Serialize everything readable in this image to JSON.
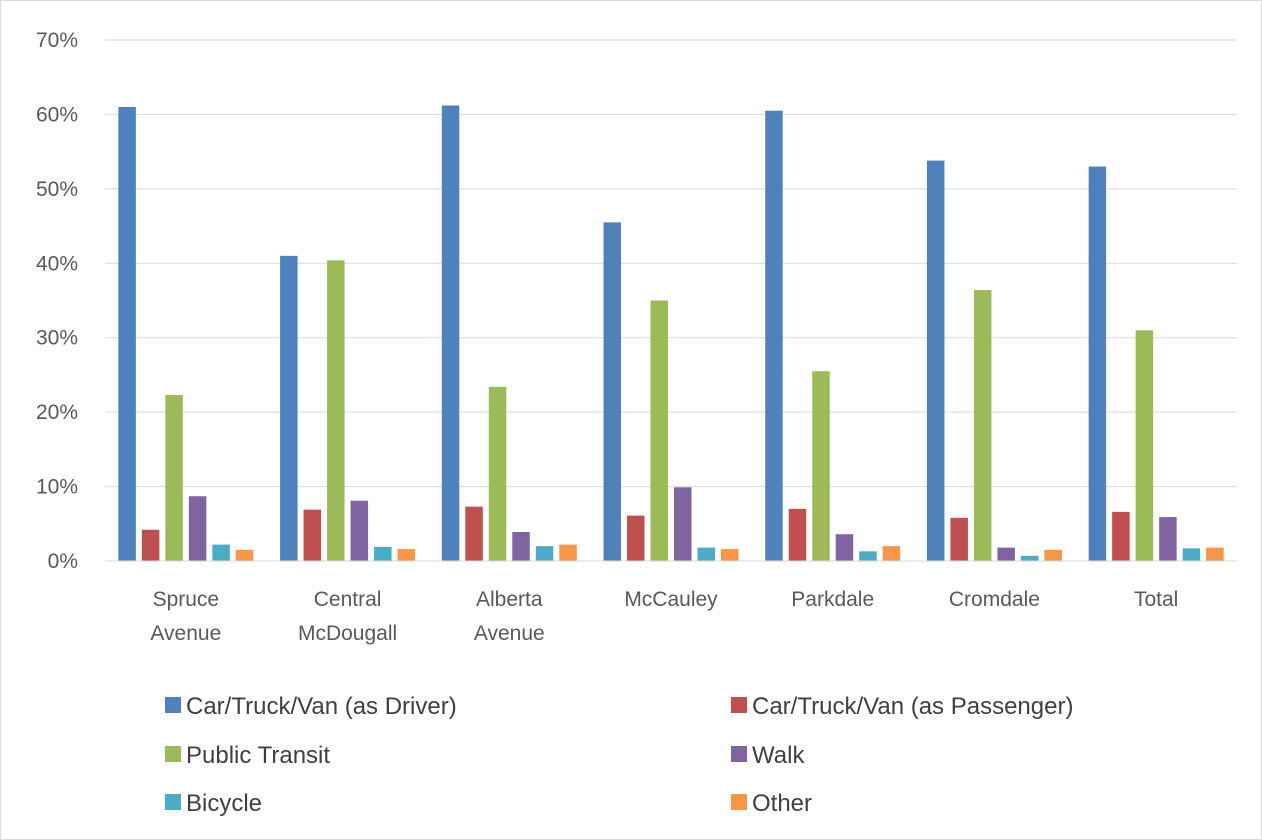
{
  "chart_data": {
    "type": "bar",
    "title": "",
    "xlabel": "",
    "ylabel": "",
    "ylim": [
      0,
      70
    ],
    "y_tick_format": "percent",
    "y_ticks": [
      "0%",
      "10%",
      "20%",
      "30%",
      "40%",
      "50%",
      "60%",
      "70%"
    ],
    "grid": true,
    "legend_position": "bottom",
    "categories": [
      [
        "Spruce",
        "Avenue"
      ],
      [
        "Central",
        "McDougall"
      ],
      [
        "Alberta",
        "Avenue"
      ],
      [
        "McCauley"
      ],
      [
        "Parkdale"
      ],
      [
        "Cromdale"
      ],
      [
        "Total"
      ]
    ],
    "series": [
      {
        "name": "Car/Truck/Van (as Driver)",
        "color": "#4f81bd",
        "values": [
          61.0,
          41.0,
          61.2,
          45.5,
          60.5,
          53.8,
          53.0
        ]
      },
      {
        "name": "Car/Truck/Van (as Passenger)",
        "color": "#c0504d",
        "values": [
          4.2,
          6.9,
          7.3,
          6.1,
          7.0,
          5.8,
          6.6
        ]
      },
      {
        "name": "Public Transit",
        "color": "#9bbb59",
        "values": [
          22.3,
          40.4,
          23.4,
          35.0,
          25.5,
          36.4,
          31.0
        ]
      },
      {
        "name": "Walk",
        "color": "#8064a2",
        "values": [
          8.7,
          8.1,
          3.9,
          9.9,
          3.6,
          1.8,
          5.9
        ]
      },
      {
        "name": "Bicycle",
        "color": "#4bacc6",
        "values": [
          2.2,
          1.9,
          2.0,
          1.8,
          1.3,
          0.7,
          1.7
        ]
      },
      {
        "name": "Other",
        "color": "#f79646",
        "values": [
          1.5,
          1.6,
          2.2,
          1.6,
          2.0,
          1.5,
          1.8
        ]
      }
    ]
  }
}
